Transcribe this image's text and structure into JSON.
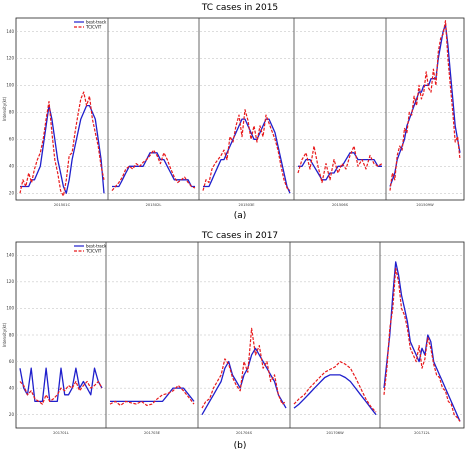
{
  "chart_data": [
    {
      "type": "line",
      "title": "TC cases in 2015",
      "caption": "(a)",
      "ylabel": "Intensity(kt)",
      "ylim": [
        15,
        150
      ],
      "yticks": [
        20,
        40,
        60,
        80,
        100,
        120,
        140
      ],
      "grid": "horizontal dashed",
      "legend": {
        "position": "top-left",
        "entries": [
          "best-track",
          "TCICVIT"
        ]
      },
      "colors": {
        "best-track": "#1f1fcc",
        "TCICVIT": "#e8191b"
      },
      "panels": [
        {
          "name": "201501C",
          "series": [
            {
              "name": "best-track",
              "values": [
                25,
                25,
                25,
                25,
                30,
                30,
                35,
                40,
                55,
                70,
                85,
                75,
                60,
                45,
                35,
                25,
                20,
                30,
                45,
                55,
                65,
                75,
                80,
                85,
                85,
                80,
                75,
                60,
                45,
                20
              ]
            },
            {
              "name": "TCICVIT",
              "values": [
                20,
                30,
                25,
                35,
                28,
                38,
                45,
                50,
                60,
                75,
                88,
                65,
                45,
                35,
                22,
                18,
                30,
                48,
                50,
                65,
                78,
                90,
                95,
                85,
                92,
                75,
                65,
                55,
                40,
                30
              ]
            }
          ]
        },
        {
          "name": "201502L",
          "series": [
            {
              "name": "best-track",
              "values": [
                25,
                25,
                25,
                30,
                35,
                40,
                40,
                40,
                40,
                40,
                45,
                50,
                50,
                50,
                45,
                45,
                40,
                35,
                30,
                30,
                30,
                30,
                30,
                25,
                25
              ]
            },
            {
              "name": "TCICVIT",
              "values": [
                22,
                25,
                28,
                32,
                38,
                40,
                38,
                42,
                40,
                43,
                45,
                48,
                52,
                48,
                42,
                50,
                45,
                38,
                32,
                28,
                30,
                32,
                28,
                25,
                24
              ]
            }
          ]
        },
        {
          "name": "201503E",
          "series": [
            {
              "name": "best-track",
              "values": [
                25,
                25,
                25,
                30,
                35,
                40,
                45,
                45,
                50,
                55,
                60,
                65,
                70,
                75,
                75,
                70,
                65,
                60,
                60,
                65,
                70,
                75,
                75,
                70,
                65,
                55,
                45,
                35,
                25,
                20
              ]
            },
            {
              "name": "TCICVIT",
              "values": [
                22,
                30,
                28,
                38,
                42,
                45,
                48,
                52,
                45,
                62,
                58,
                70,
                78,
                62,
                82,
                74,
                60,
                70,
                58,
                70,
                62,
                78,
                72,
                66,
                60,
                52,
                40,
                30,
                24,
                22
              ]
            }
          ]
        },
        {
          "name": "201506S",
          "series": [
            {
              "name": "best-track",
              "values": [
                40,
                40,
                45,
                45,
                40,
                35,
                30,
                30,
                35,
                35,
                40,
                40,
                45,
                50,
                50,
                45,
                45,
                45,
                45,
                45,
                40,
                40
              ]
            },
            {
              "name": "TCICVIT",
              "values": [
                35,
                45,
                50,
                38,
                55,
                40,
                28,
                42,
                30,
                45,
                35,
                42,
                38,
                48,
                55,
                40,
                45,
                38,
                48,
                42,
                40,
                42
              ]
            }
          ]
        },
        {
          "name": "201509W",
          "series": [
            {
              "name": "best-track",
              "values": [
                25,
                30,
                35,
                45,
                50,
                55,
                60,
                70,
                75,
                80,
                85,
                90,
                95,
                95,
                100,
                100,
                100,
                105,
                105,
                105,
                120,
                130,
                140,
                145,
                130,
                110,
                90,
                70,
                60,
                50
              ]
            },
            {
              "name": "TCICVIT",
              "values": [
                22,
                35,
                30,
                48,
                55,
                52,
                68,
                65,
                80,
                78,
                92,
                85,
                100,
                90,
                95,
                110,
                98,
                95,
                112,
                100,
                125,
                135,
                138,
                148,
                120,
                100,
                80,
                58,
                62,
                45
              ]
            }
          ]
        }
      ]
    },
    {
      "type": "line",
      "title": "TC cases in 2017",
      "caption": "(b)",
      "ylabel": "Intensity(kt)",
      "ylim": [
        10,
        150
      ],
      "yticks": [
        20,
        40,
        60,
        80,
        100,
        120,
        140
      ],
      "grid": "horizontal dashed",
      "legend": {
        "position": "top-left",
        "entries": [
          "best-track",
          "TCICVIT"
        ]
      },
      "colors": {
        "best-track": "#1f1fcc",
        "TCICVIT": "#e8191b"
      },
      "panels": [
        {
          "name": "201701L",
          "series": [
            {
              "name": "best-track",
              "values": [
                55,
                40,
                35,
                55,
                30,
                30,
                30,
                55,
                30,
                30,
                30,
                55,
                35,
                35,
                40,
                55,
                40,
                45,
                40,
                35,
                55,
                45,
                40
              ]
            },
            {
              "name": "TCICVIT",
              "values": [
                45,
                42,
                35,
                38,
                32,
                30,
                28,
                35,
                30,
                32,
                35,
                40,
                38,
                42,
                40,
                45,
                38,
                42,
                45,
                40,
                42,
                45,
                40
              ]
            }
          ]
        },
        {
          "name": "201703E",
          "series": [
            {
              "name": "best-track",
              "values": [
                30,
                30,
                30,
                30,
                30,
                30,
                30,
                30,
                30,
                30,
                30,
                35,
                40,
                40,
                40,
                35,
                30
              ]
            },
            {
              "name": "TCICVIT",
              "values": [
                28,
                30,
                27,
                30,
                29,
                28,
                30,
                27,
                28,
                32,
                35,
                36,
                38,
                42,
                38,
                33,
                28
              ]
            }
          ]
        },
        {
          "name": "201704S",
          "series": [
            {
              "name": "best-track",
              "values": [
                20,
                25,
                30,
                35,
                40,
                45,
                55,
                60,
                50,
                45,
                40,
                50,
                55,
                65,
                70,
                65,
                60,
                55,
                50,
                45,
                35,
                30,
                25
              ]
            },
            {
              "name": "TCICVIT",
              "values": [
                25,
                30,
                32,
                40,
                45,
                50,
                62,
                58,
                48,
                42,
                38,
                60,
                52,
                85,
                65,
                72,
                55,
                60,
                45,
                50,
                35,
                28,
                30
              ]
            }
          ]
        },
        {
          "name": "201706W",
          "series": [
            {
              "name": "best-track",
              "values": [
                25,
                28,
                32,
                36,
                40,
                44,
                48,
                50,
                50,
                50,
                48,
                45,
                40,
                35,
                30,
                25,
                20
              ]
            },
            {
              "name": "TCICVIT",
              "values": [
                28,
                32,
                35,
                40,
                44,
                48,
                52,
                54,
                56,
                60,
                58,
                55,
                48,
                40,
                32,
                26,
                22
              ]
            }
          ]
        },
        {
          "name": "201712L",
          "series": [
            {
              "name": "best-track",
              "values": [
                40,
                60,
                80,
                110,
                135,
                125,
                110,
                100,
                90,
                75,
                70,
                65,
                60,
                70,
                65,
                80,
                75,
                60,
                55,
                50,
                45,
                40,
                35,
                30,
                25,
                20,
                15
              ]
            },
            {
              "name": "TCICVIT",
              "values": [
                35,
                55,
                85,
                100,
                130,
                120,
                100,
                95,
                85,
                70,
                65,
                60,
                72,
                55,
                62,
                78,
                70,
                58,
                50,
                48,
                40,
                38,
                30,
                28,
                20,
                18,
                15
              ]
            }
          ]
        }
      ]
    }
  ]
}
